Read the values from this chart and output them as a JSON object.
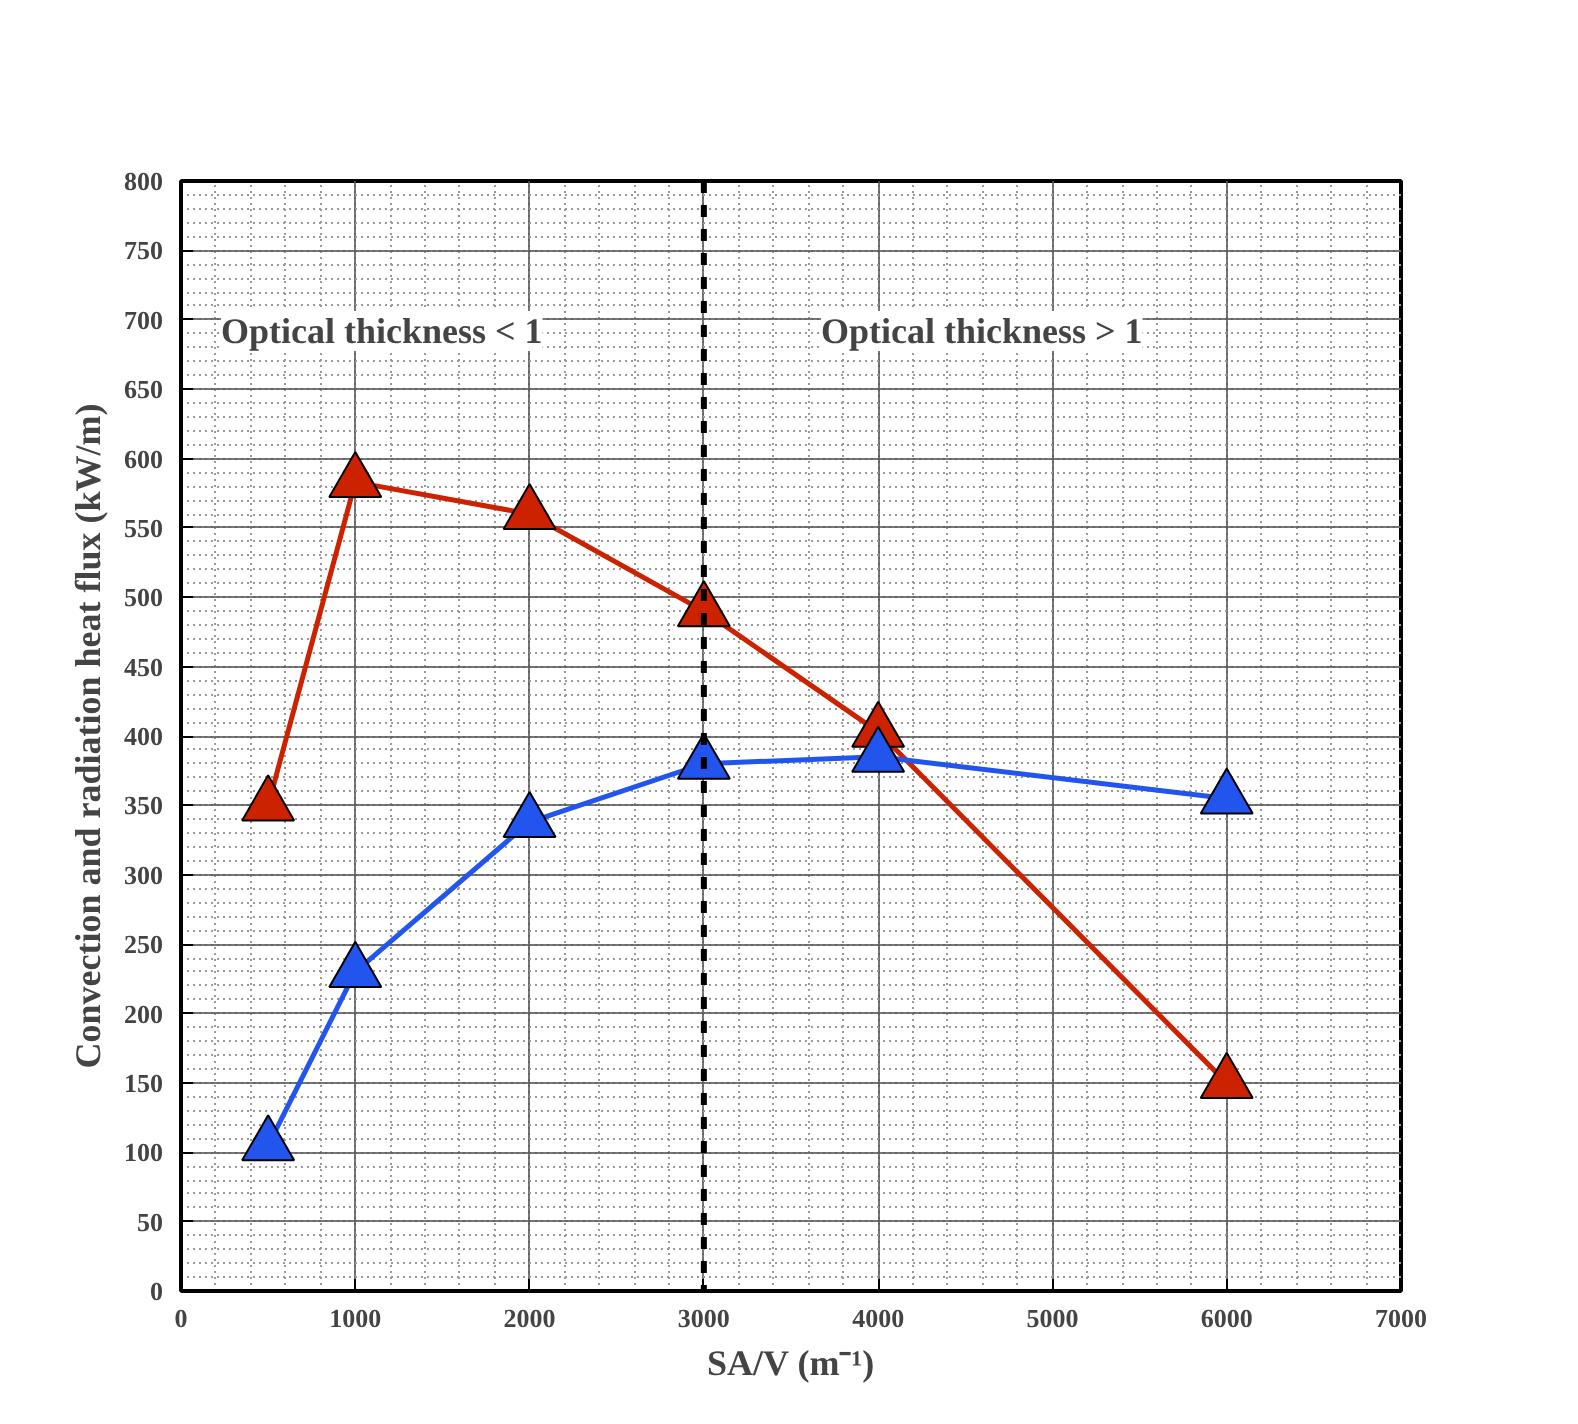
{
  "chart_data": {
    "type": "line",
    "xlabel": "SA/V (m⁻¹)",
    "ylabel": "Convection and radiation heat flux (kW/m)",
    "x": [
      500,
      1000,
      2000,
      3000,
      4000,
      6000
    ],
    "series": [
      {
        "color": "#cc2200",
        "values": [
          350,
          583,
          560,
          490,
          403,
          150
        ],
        "marker": "triangle"
      },
      {
        "color": "#2255ee",
        "values": [
          105,
          230,
          338,
          380,
          385,
          355
        ],
        "marker": "triangle"
      }
    ],
    "xlim": [
      0,
      7000
    ],
    "xticks": [
      0,
      1000,
      2000,
      3000,
      4000,
      5000,
      6000,
      7000
    ],
    "ylim": [
      0,
      800
    ],
    "yticks": [
      0,
      50,
      100,
      150,
      200,
      250,
      300,
      350,
      400,
      450,
      500,
      550,
      600,
      650,
      700,
      750,
      800
    ],
    "grid": true,
    "line_style": "solid",
    "ref_lines": [
      {
        "axis": "x",
        "value": 3000,
        "label": null,
        "color": "#000000",
        "line_style": "dashed"
      }
    ],
    "annotations": [
      "Optical thickness < 1",
      "Optical thickness > 1"
    ]
  }
}
